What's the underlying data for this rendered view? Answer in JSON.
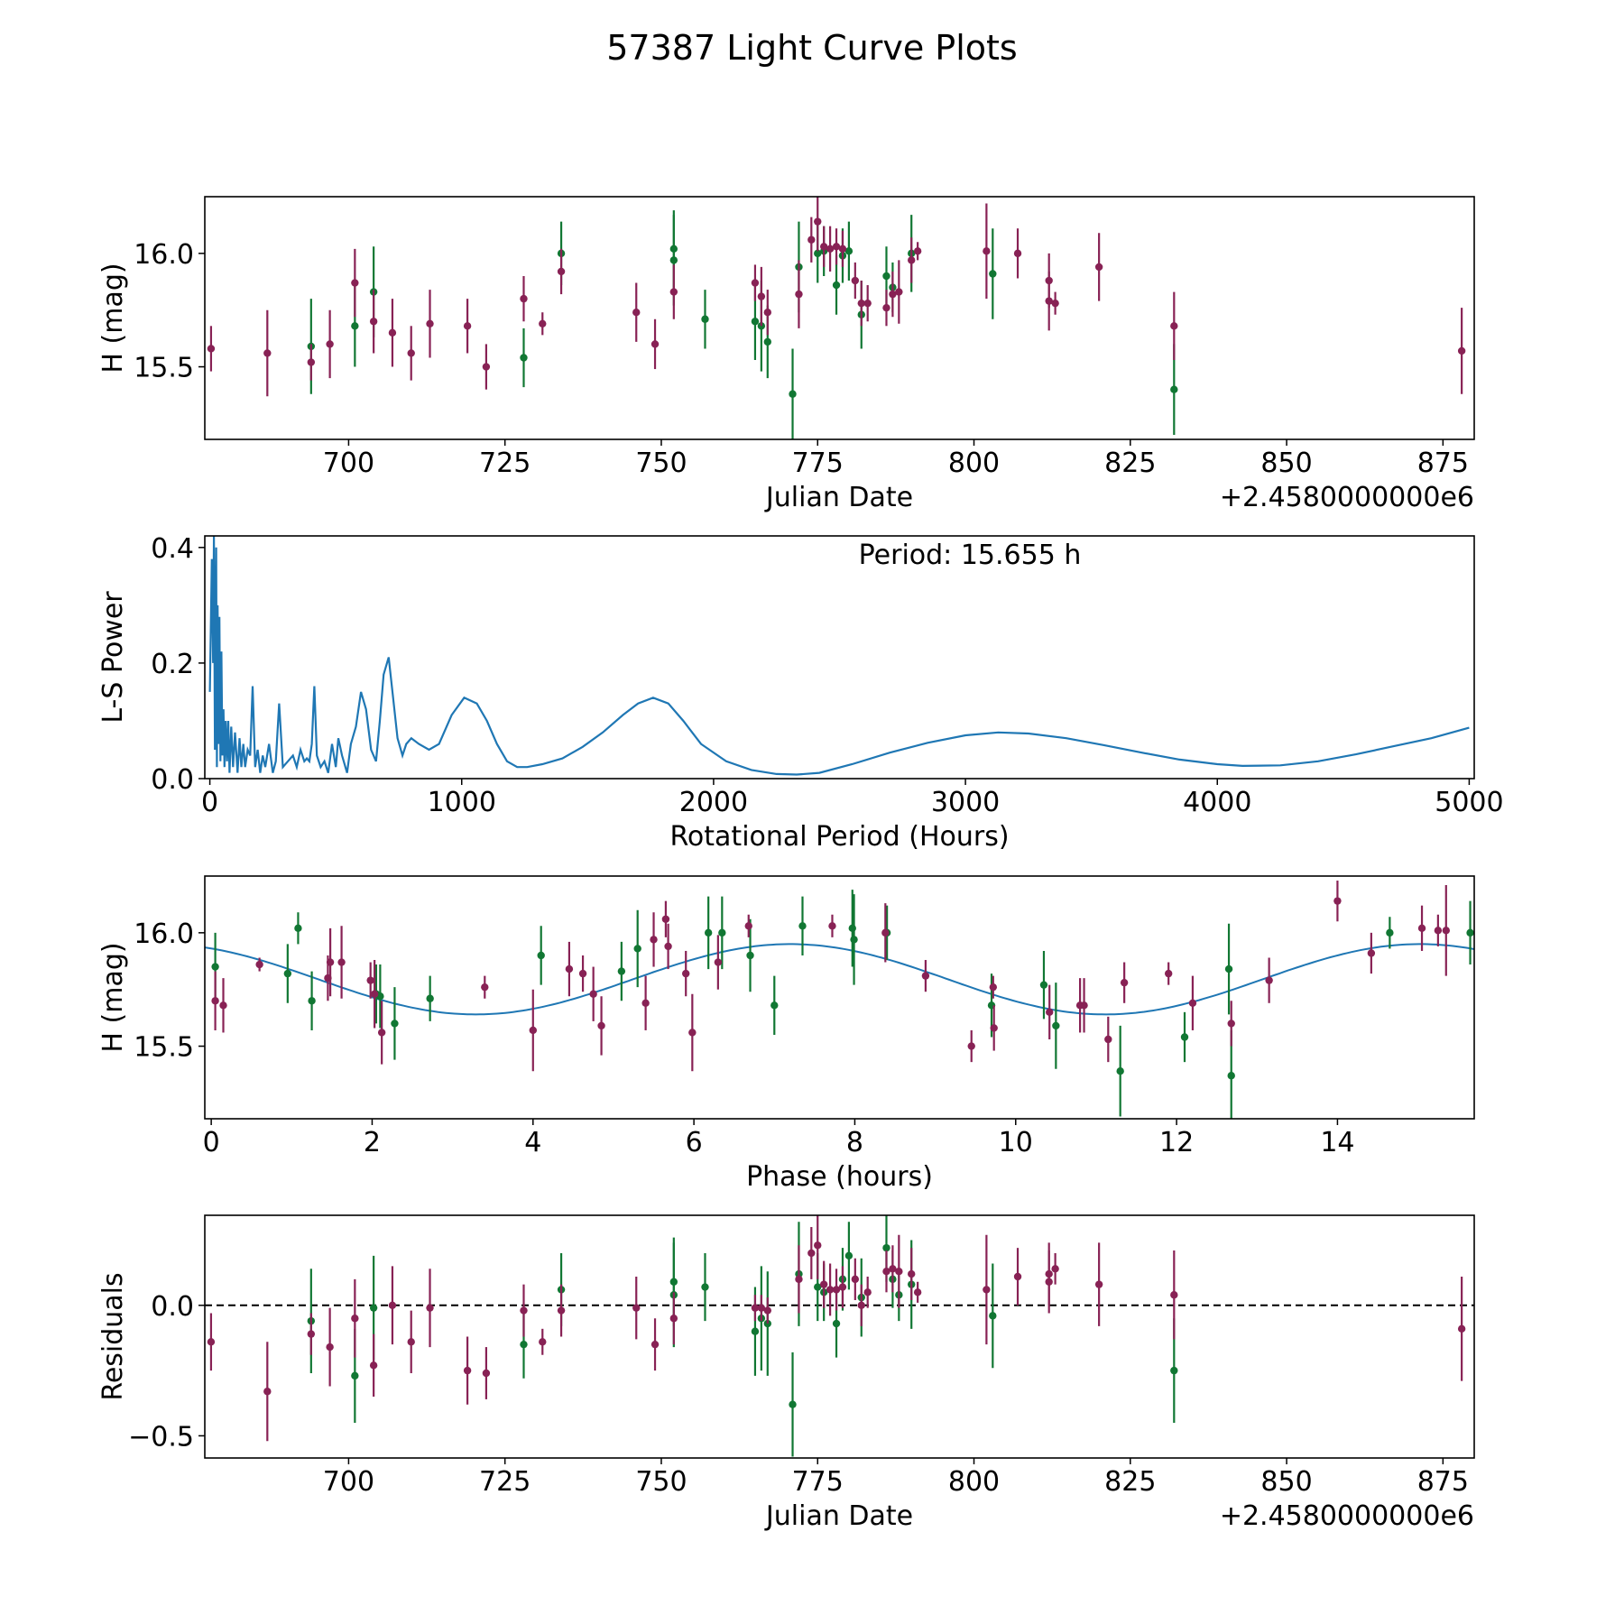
{
  "title": "57387 Light Curve Plots",
  "colors": {
    "green": "#117733",
    "magenta": "#882255",
    "blue": "#1f77b4"
  },
  "chart_data": [
    {
      "type": "scatter",
      "id": "lc",
      "xlabel": "Julian Date",
      "ylabel": "H (mag)",
      "offset_label": "+2.4580000000e6",
      "xlim": [
        677,
        880
      ],
      "ylim": [
        15.18,
        16.25
      ],
      "xticks": [
        700,
        725,
        750,
        775,
        800,
        825,
        850,
        875
      ],
      "xtick_labels": [
        "700",
        "725",
        "750",
        "775",
        "800",
        "825",
        "850",
        "875"
      ],
      "yticks": [
        15.5,
        16.0
      ],
      "ytick_labels": [
        "15.5",
        "16.0"
      ],
      "series": [
        {
          "name": "green",
          "color": "#117733",
          "x": [
            694,
            701,
            704,
            728,
            734,
            752,
            752,
            757,
            765,
            766,
            767,
            771,
            772,
            775,
            776,
            778,
            779,
            780,
            782,
            786,
            787,
            790,
            803,
            832
          ],
          "y": [
            15.59,
            15.68,
            15.83,
            15.54,
            16.0,
            15.97,
            16.02,
            15.71,
            15.7,
            15.68,
            15.61,
            15.38,
            15.94,
            16.0,
            16.01,
            15.86,
            15.99,
            16.01,
            15.73,
            15.9,
            15.85,
            16.0,
            15.91,
            15.4
          ],
          "err": [
            0.21,
            0.18,
            0.2,
            0.13,
            0.14,
            0.2,
            0.17,
            0.13,
            0.17,
            0.2,
            0.16,
            0.2,
            0.2,
            0.13,
            0.11,
            0.13,
            0.12,
            0.13,
            0.15,
            0.13,
            0.11,
            0.17,
            0.2,
            0.2
          ]
        },
        {
          "name": "magenta",
          "color": "#882255",
          "x": [
            678,
            687,
            694,
            697,
            701,
            704,
            707,
            710,
            713,
            719,
            722,
            728,
            731,
            734,
            746,
            749,
            752,
            765,
            766,
            767,
            772,
            774,
            775,
            776,
            777,
            778,
            779,
            781,
            782,
            783,
            786,
            787,
            788,
            790,
            791,
            802,
            807,
            812,
            812,
            813,
            820,
            832,
            878
          ],
          "y": [
            15.58,
            15.56,
            15.52,
            15.6,
            15.87,
            15.7,
            15.65,
            15.56,
            15.69,
            15.68,
            15.5,
            15.8,
            15.69,
            15.92,
            15.74,
            15.6,
            15.83,
            15.87,
            15.81,
            15.74,
            15.82,
            16.06,
            16.14,
            16.03,
            16.02,
            16.03,
            16.02,
            15.88,
            15.78,
            15.78,
            15.76,
            15.82,
            15.83,
            15.97,
            16.01,
            16.01,
            16.0,
            15.88,
            15.79,
            15.78,
            15.94,
            15.68,
            15.57
          ],
          "err": [
            0.1,
            0.19,
            0.08,
            0.15,
            0.15,
            0.14,
            0.15,
            0.12,
            0.15,
            0.12,
            0.1,
            0.1,
            0.05,
            0.1,
            0.13,
            0.11,
            0.12,
            0.08,
            0.13,
            0.1,
            0.15,
            0.1,
            0.13,
            0.09,
            0.1,
            0.08,
            0.08,
            0.08,
            0.1,
            0.08,
            0.08,
            0.1,
            0.14,
            0.1,
            0.04,
            0.21,
            0.11,
            0.12,
            0.13,
            0.05,
            0.15,
            0.15,
            0.19
          ]
        }
      ]
    },
    {
      "type": "line",
      "id": "ls",
      "xlabel": "Rotational Period (Hours)",
      "ylabel": "L-S Power",
      "annotation": "Period: 15.655 h",
      "xlim": [
        -20,
        5020
      ],
      "ylim": [
        0,
        0.42
      ],
      "xticks": [
        0,
        1000,
        2000,
        3000,
        4000,
        5000
      ],
      "xtick_labels": [
        "0",
        "1000",
        "2000",
        "3000",
        "4000",
        "5000"
      ],
      "yticks": [
        0,
        0.2,
        0.4
      ],
      "ytick_labels": [
        "0.0",
        "0.2",
        "0.4"
      ],
      "series": [
        {
          "name": "L-S power",
          "color": "#1f77b4",
          "x": [
            0,
            8,
            13,
            16,
            20,
            25,
            28,
            31,
            35,
            38,
            42,
            46,
            50,
            54,
            58,
            63,
            68,
            73,
            78,
            85,
            92,
            100,
            110,
            118,
            125,
            133,
            140,
            150,
            160,
            170,
            180,
            190,
            200,
            210,
            220,
            235,
            250,
            262,
            275,
            290,
            310,
            330,
            345,
            360,
            375,
            385,
            395,
            405,
            415,
            425,
            440,
            455,
            470,
            485,
            500,
            510,
            525,
            545,
            560,
            580,
            600,
            620,
            640,
            660,
            675,
            690,
            710,
            725,
            745,
            765,
            780,
            800,
            830,
            870,
            910,
            960,
            1010,
            1060,
            1100,
            1140,
            1180,
            1220,
            1260,
            1320,
            1400,
            1480,
            1560,
            1640,
            1700,
            1760,
            1820,
            1880,
            1950,
            2050,
            2150,
            2250,
            2330,
            2420,
            2550,
            2700,
            2850,
            3000,
            3130,
            3250,
            3400,
            3550,
            3700,
            3850,
            4000,
            4100,
            4250,
            4400,
            4550,
            4700,
            4850,
            5000
          ],
          "y": [
            0.15,
            0.38,
            0.2,
            0.42,
            0.05,
            0.4,
            0.02,
            0.3,
            0.06,
            0.28,
            0.03,
            0.22,
            0.04,
            0.12,
            0.02,
            0.1,
            0.03,
            0.1,
            0.01,
            0.09,
            0.02,
            0.08,
            0.01,
            0.07,
            0.02,
            0.06,
            0.02,
            0.05,
            0.04,
            0.16,
            0.02,
            0.05,
            0.01,
            0.04,
            0.02,
            0.06,
            0.01,
            0.03,
            0.13,
            0.02,
            0.03,
            0.04,
            0.02,
            0.05,
            0.03,
            0.035,
            0.03,
            0.06,
            0.16,
            0.04,
            0.02,
            0.03,
            0.01,
            0.06,
            0.02,
            0.07,
            0.04,
            0.01,
            0.06,
            0.09,
            0.15,
            0.12,
            0.05,
            0.03,
            0.1,
            0.18,
            0.21,
            0.15,
            0.07,
            0.04,
            0.06,
            0.07,
            0.06,
            0.05,
            0.06,
            0.11,
            0.14,
            0.13,
            0.1,
            0.06,
            0.03,
            0.02,
            0.02,
            0.025,
            0.035,
            0.055,
            0.08,
            0.11,
            0.13,
            0.14,
            0.13,
            0.1,
            0.06,
            0.03,
            0.015,
            0.008,
            0.007,
            0.01,
            0.025,
            0.045,
            0.062,
            0.075,
            0.08,
            0.078,
            0.07,
            0.058,
            0.045,
            0.033,
            0.025,
            0.022,
            0.023,
            0.03,
            0.042,
            0.056,
            0.07,
            0.088
          ]
        }
      ]
    },
    {
      "type": "scatter",
      "id": "phase",
      "xlabel": "Phase (hours)",
      "ylabel": "H (mag)",
      "xlim": [
        -0.08,
        15.7
      ],
      "ylim": [
        15.18,
        16.25
      ],
      "xticks": [
        0,
        2,
        4,
        6,
        8,
        10,
        12,
        14
      ],
      "xtick_labels": [
        "0",
        "2",
        "4",
        "6",
        "8",
        "10",
        "12",
        "14"
      ],
      "yticks": [
        15.5,
        16.0
      ],
      "ytick_labels": [
        "15.5",
        "16.0"
      ],
      "model": {
        "mean": 15.795,
        "amp": 0.155,
        "period": 7.8275,
        "peak": 7.2,
        "color": "#1f77b4"
      },
      "series": [
        {
          "name": "green",
          "color": "#117733",
          "x": [
            0.05,
            0.95,
            1.08,
            1.25,
            2.05,
            2.1,
            2.28,
            2.72,
            4.1,
            5.1,
            5.3,
            6.18,
            6.35,
            6.7,
            7.0,
            7.35,
            7.97,
            7.99,
            8.4,
            9.7,
            10.35,
            10.5,
            11.3,
            12.1,
            12.65,
            12.68,
            14.65,
            15.65
          ],
          "y": [
            15.85,
            15.82,
            16.02,
            15.7,
            15.73,
            15.72,
            15.6,
            15.71,
            15.9,
            15.83,
            15.93,
            16.0,
            16.0,
            15.9,
            15.68,
            16.03,
            16.02,
            15.97,
            16.0,
            15.68,
            15.77,
            15.59,
            15.39,
            15.54,
            15.84,
            15.37,
            16.0,
            16.0
          ],
          "err": [
            0.15,
            0.13,
            0.07,
            0.13,
            0.13,
            0.14,
            0.16,
            0.1,
            0.13,
            0.13,
            0.17,
            0.16,
            0.16,
            0.16,
            0.13,
            0.13,
            0.17,
            0.2,
            0.12,
            0.14,
            0.15,
            0.19,
            0.2,
            0.11,
            0.2,
            0.2,
            0.07,
            0.14
          ]
        },
        {
          "name": "magenta",
          "color": "#882255",
          "x": [
            0.05,
            0.15,
            0.6,
            1.45,
            1.48,
            1.62,
            1.98,
            2.03,
            2.12,
            3.4,
            4.0,
            4.45,
            4.62,
            4.75,
            4.85,
            5.4,
            5.5,
            5.65,
            5.68,
            5.9,
            5.98,
            6.3,
            6.68,
            7.72,
            8.38,
            8.88,
            9.45,
            9.72,
            9.73,
            10.42,
            10.8,
            10.85,
            11.15,
            11.35,
            11.9,
            12.2,
            12.68,
            13.15,
            14.0,
            14.42,
            15.05,
            15.25,
            15.35
          ],
          "y": [
            15.7,
            15.68,
            15.86,
            15.8,
            15.87,
            15.87,
            15.79,
            15.73,
            15.56,
            15.76,
            15.57,
            15.84,
            15.82,
            15.73,
            15.59,
            15.69,
            15.97,
            16.06,
            15.94,
            15.82,
            15.56,
            15.87,
            16.03,
            16.03,
            16.0,
            15.81,
            15.5,
            15.76,
            15.58,
            15.65,
            15.68,
            15.68,
            15.53,
            15.78,
            15.82,
            15.69,
            15.6,
            15.79,
            16.14,
            15.91,
            16.02,
            16.01,
            16.01
          ],
          "err": [
            0.13,
            0.12,
            0.03,
            0.1,
            0.15,
            0.16,
            0.08,
            0.15,
            0.14,
            0.05,
            0.18,
            0.12,
            0.08,
            0.12,
            0.13,
            0.12,
            0.12,
            0.08,
            0.1,
            0.1,
            0.17,
            0.12,
            0.05,
            0.05,
            0.13,
            0.07,
            0.07,
            0.05,
            0.1,
            0.12,
            0.12,
            0.12,
            0.1,
            0.09,
            0.05,
            0.12,
            0.1,
            0.1,
            0.09,
            0.09,
            0.1,
            0.07,
            0.2
          ]
        }
      ]
    },
    {
      "type": "scatter",
      "id": "resid",
      "xlabel": "Julian Date",
      "ylabel": "Residuals",
      "offset_label": "+2.4580000000e6",
      "xlim": [
        677,
        880
      ],
      "ylim": [
        -0.585,
        0.345
      ],
      "xticks": [
        700,
        725,
        750,
        775,
        800,
        825,
        850,
        875
      ],
      "xtick_labels": [
        "700",
        "725",
        "750",
        "775",
        "800",
        "825",
        "850",
        "875"
      ],
      "yticks": [
        -0.5,
        0.0
      ],
      "ytick_labels": [
        "−0.5",
        "0.0"
      ],
      "hline": 0,
      "series": [
        {
          "name": "green",
          "color": "#117733",
          "x": [
            694,
            701,
            704,
            728,
            734,
            752,
            752,
            757,
            765,
            766,
            767,
            771,
            772,
            775,
            776,
            778,
            779,
            780,
            782,
            786,
            787,
            788,
            790,
            803,
            832
          ],
          "y": [
            -0.06,
            -0.27,
            -0.01,
            -0.15,
            0.06,
            0.04,
            0.09,
            0.07,
            -0.1,
            -0.05,
            -0.07,
            -0.38,
            0.12,
            0.07,
            0.05,
            -0.07,
            0.1,
            0.19,
            0.03,
            0.22,
            0.1,
            0.04,
            0.08,
            -0.04,
            -0.25
          ],
          "err": [
            0.2,
            0.18,
            0.2,
            0.13,
            0.14,
            0.2,
            0.17,
            0.13,
            0.17,
            0.2,
            0.2,
            0.2,
            0.2,
            0.13,
            0.11,
            0.13,
            0.12,
            0.13,
            0.15,
            0.13,
            0.11,
            0.1,
            0.17,
            0.2,
            0.2
          ]
        },
        {
          "name": "magenta",
          "color": "#882255",
          "x": [
            678,
            687,
            694,
            697,
            701,
            704,
            707,
            710,
            713,
            719,
            722,
            728,
            731,
            734,
            746,
            749,
            752,
            765,
            766,
            767,
            772,
            774,
            775,
            776,
            777,
            778,
            779,
            781,
            782,
            783,
            786,
            787,
            788,
            790,
            791,
            802,
            807,
            812,
            812,
            813,
            820,
            832,
            878
          ],
          "y": [
            -0.14,
            -0.33,
            -0.11,
            -0.16,
            -0.05,
            -0.23,
            0.0,
            -0.14,
            -0.01,
            -0.25,
            -0.26,
            -0.02,
            -0.14,
            -0.02,
            -0.01,
            -0.15,
            -0.05,
            -0.01,
            -0.01,
            -0.02,
            0.1,
            0.2,
            0.23,
            0.08,
            0.06,
            0.06,
            0.07,
            0.1,
            0.0,
            0.05,
            0.13,
            0.14,
            0.13,
            0.12,
            0.05,
            0.06,
            0.11,
            0.09,
            0.12,
            0.14,
            0.08,
            0.04,
            -0.09
          ],
          "err": [
            0.11,
            0.19,
            0.08,
            0.15,
            0.15,
            0.12,
            0.15,
            0.12,
            0.15,
            0.13,
            0.1,
            0.1,
            0.05,
            0.1,
            0.12,
            0.1,
            0.1,
            0.05,
            0.05,
            0.05,
            0.13,
            0.1,
            0.13,
            0.09,
            0.1,
            0.08,
            0.08,
            0.08,
            0.08,
            0.06,
            0.08,
            0.09,
            0.14,
            0.1,
            0.04,
            0.21,
            0.11,
            0.12,
            0.12,
            0.06,
            0.16,
            0.17,
            0.2
          ]
        }
      ]
    }
  ]
}
